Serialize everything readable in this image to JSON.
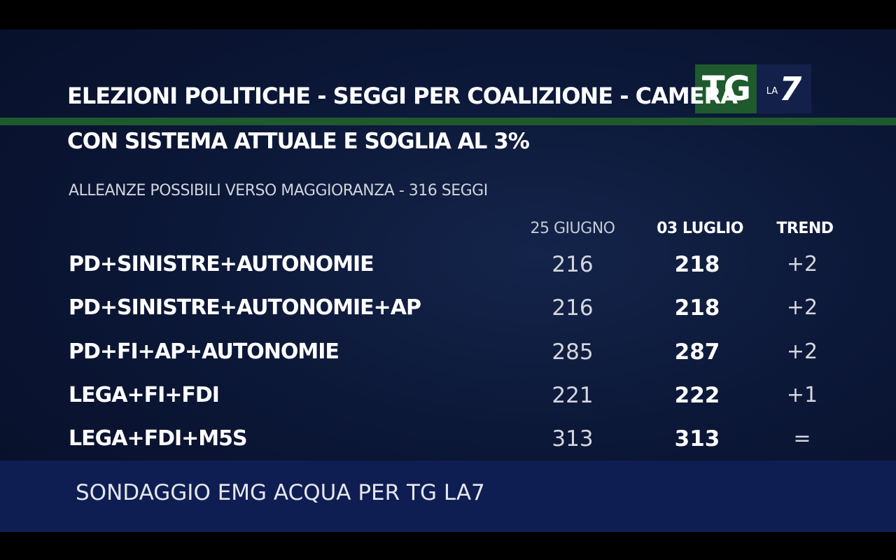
{
  "header": {
    "title": "ELEZIONI POLITICHE - SEGGI PER COALIZIONE - CAMERA",
    "subtitle": "CON SISTEMA ATTUALE E SOGLIA AL 3%",
    "caption": "ALLEANZE POSSIBILI VERSO MAGGIORANZA - 316 SEGGI"
  },
  "logo": {
    "tg": "TG",
    "la": "LA",
    "seven": "7"
  },
  "colors": {
    "background": "#0c1838",
    "accent_green": "#1e5a2e",
    "footer": "#0f1e52"
  },
  "table": {
    "columns": [
      "25 GIUGNO",
      "03 LUGLIO",
      "TREND"
    ],
    "rows": [
      {
        "label": "PD+SINISTRE+AUTONOMIE",
        "v1": "216",
        "v2": "218",
        "trend": "+2"
      },
      {
        "label": "PD+SINISTRE+AUTONOMIE+AP",
        "v1": "216",
        "v2": "218",
        "trend": "+2"
      },
      {
        "label": "PD+FI+AP+AUTONOMIE",
        "v1": "285",
        "v2": "287",
        "trend": "+2"
      },
      {
        "label": "LEGA+FI+FDI",
        "v1": "221",
        "v2": "222",
        "trend": "+1"
      },
      {
        "label": "LEGA+FDI+M5S",
        "v1": "313",
        "v2": "313",
        "trend": "="
      }
    ]
  },
  "footer": {
    "text": "SONDAGGIO EMG ACQUA PER TG LA7"
  }
}
